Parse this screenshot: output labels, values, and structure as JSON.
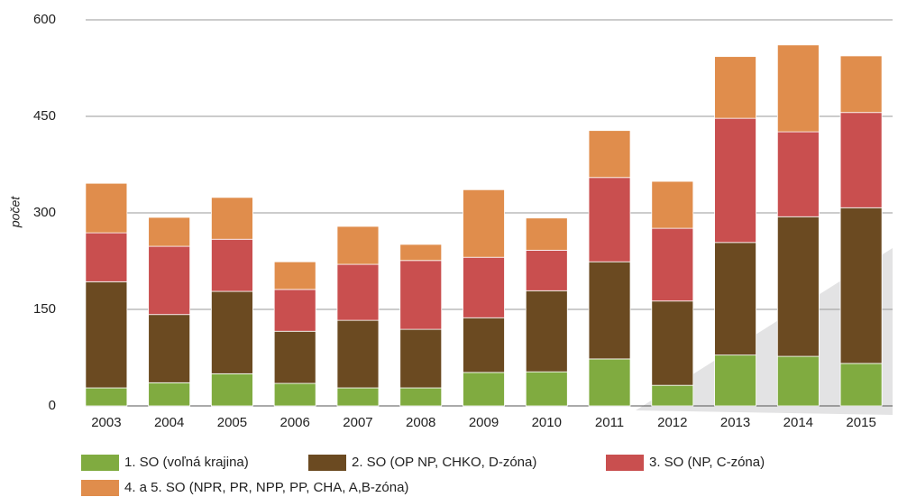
{
  "chart_data": {
    "type": "stacked_bar",
    "y_label": "počet",
    "categories": [
      "2003",
      "2004",
      "2005",
      "2006",
      "2007",
      "2008",
      "2009",
      "2010",
      "2011",
      "2012",
      "2013",
      "2014",
      "2015"
    ],
    "series": [
      {
        "name": "1. SO (voľná krajina)",
        "color": "#80ab40",
        "values": [
          28,
          36,
          50,
          35,
          28,
          28,
          52,
          53,
          73,
          32,
          79,
          77,
          66
        ]
      },
      {
        "name": "2. SO (OP NP, CHKO, D-zóna)",
        "color": "#6b4a21",
        "values": [
          165,
          106,
          128,
          81,
          105,
          91,
          85,
          126,
          151,
          131,
          175,
          217,
          242
        ]
      },
      {
        "name": "3. SO (NP, C-zóna)",
        "color": "#c94f4f",
        "values": [
          76,
          106,
          81,
          65,
          87,
          107,
          94,
          63,
          131,
          113,
          193,
          132,
          148
        ]
      },
      {
        "name": "4. a 5. SO (NPR, PR, NPP, PP, CHA, A,B-zóna)",
        "color": "#e08d4c",
        "values": [
          77,
          45,
          65,
          43,
          59,
          25,
          105,
          50,
          73,
          73,
          96,
          135,
          88
        ]
      }
    ],
    "ylim": [
      0,
      600
    ],
    "yticks": [
      0,
      150,
      300,
      450,
      600
    ],
    "grid": true
  }
}
